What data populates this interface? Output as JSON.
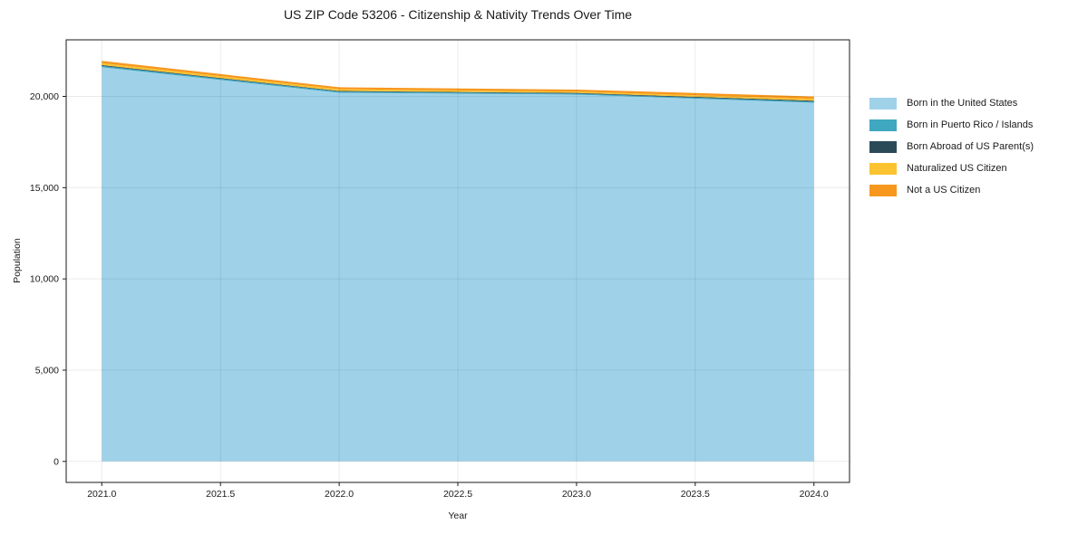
{
  "figure": {
    "title": "US ZIP Code 53206 - Citizenship & Nativity Trends Over Time",
    "xlabel": "Year",
    "ylabel": "Population"
  },
  "chart_data": {
    "type": "area",
    "stacked": true,
    "title": "US ZIP Code 53206 - Citizenship & Nativity Trends Over Time",
    "xlabel": "Year",
    "ylabel": "Population",
    "x": [
      2021,
      2022,
      2023,
      2024
    ],
    "series": [
      {
        "name": "Born in the United States",
        "color": "#9FD2E9",
        "values": [
          21600,
          20200,
          20100,
          19650
        ]
      },
      {
        "name": "Born in Puerto Rico / Islands",
        "color": "#3FA7C0",
        "values": [
          70,
          65,
          55,
          65
        ]
      },
      {
        "name": "Born Abroad of US Parent(s)",
        "color": "#2A4A58",
        "values": [
          45,
          35,
          35,
          50
        ]
      },
      {
        "name": "Naturalized US Citizen",
        "color": "#FBC330",
        "values": [
          110,
          95,
          70,
          100
        ]
      },
      {
        "name": "Not a US Citizen",
        "color": "#F7971E",
        "values": [
          120,
          105,
          115,
          130
        ]
      }
    ],
    "totals": [
      21945,
      20500,
      20375,
      19995
    ],
    "xlim": [
      2020.85,
      2024.15
    ],
    "ylim": [
      -1150,
      23100
    ],
    "xticks": [
      2021.0,
      2021.5,
      2022.0,
      2022.5,
      2023.0,
      2023.5,
      2024.0
    ],
    "yticks": [
      0,
      5000,
      10000,
      15000,
      20000
    ],
    "grid": true,
    "legend_position": "right",
    "colors": {
      "gridline": "rgba(0,0,0,0.08)",
      "spine": "#1a1a1a",
      "tick": "#1a1a1a",
      "background": "#ffffff"
    }
  }
}
